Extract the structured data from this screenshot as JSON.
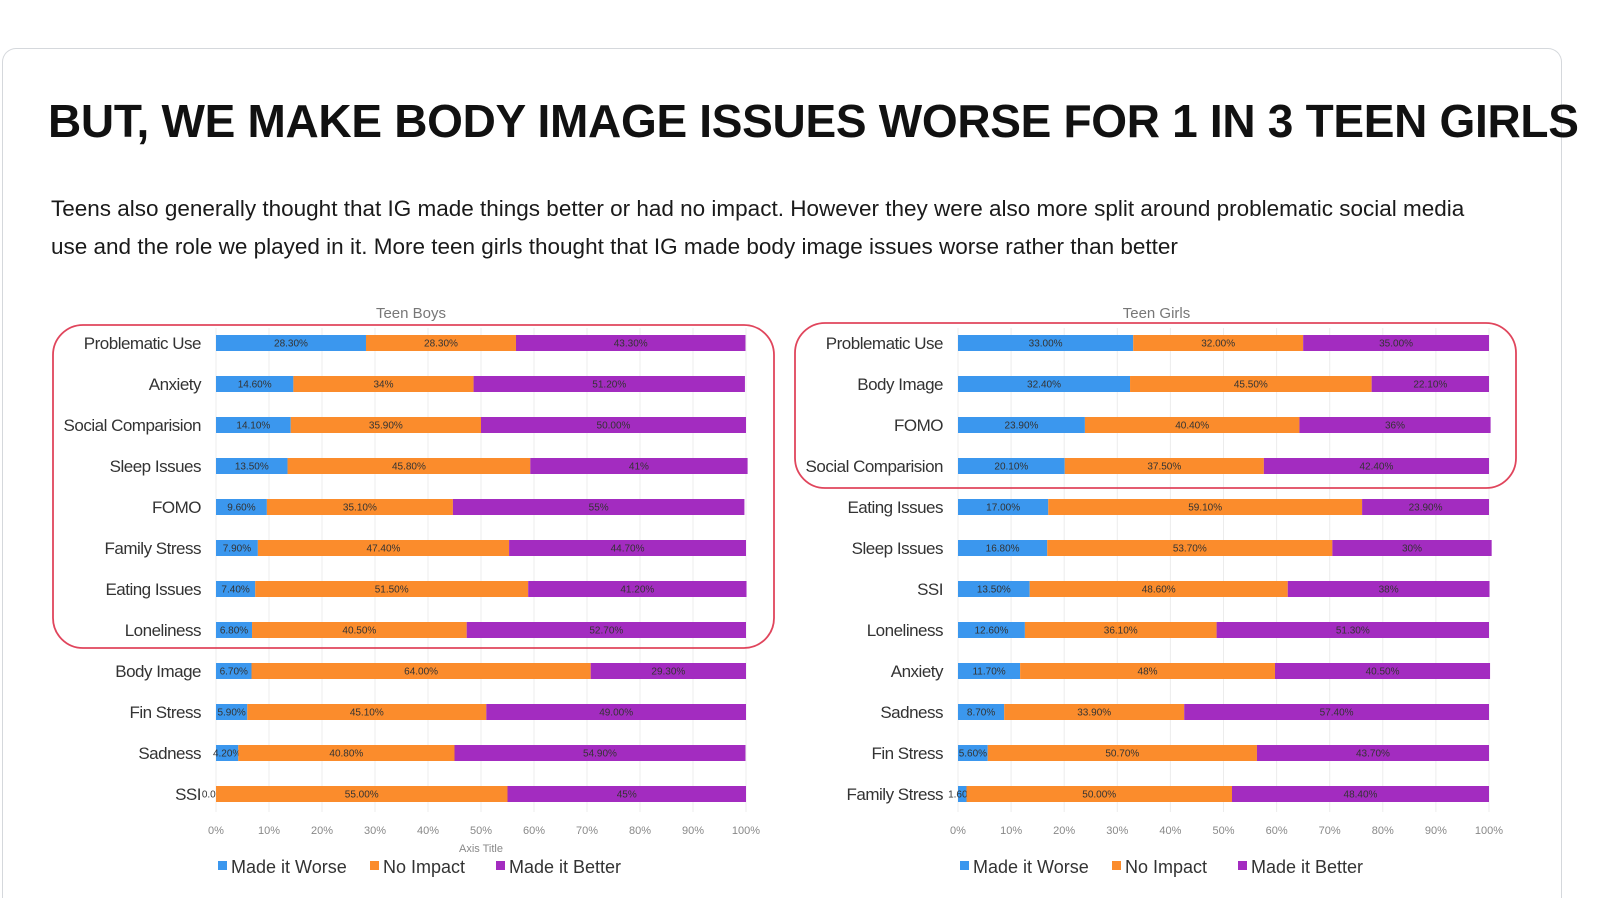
{
  "slide": {
    "title": "BUT, WE MAKE BODY IMAGE ISSUES WORSE FOR 1 IN 3 TEEN GIRLS",
    "subtitle": "Teens also generally thought that IG made things better or had no impact. However they were also more split around problematic social media use and the role we played in it. More teen girls thought that IG made body image issues worse rather than better"
  },
  "colors": {
    "made_worse": "#3b97ee",
    "no_impact": "#fb8c2c",
    "made_better": "#a32cc0",
    "highlight": "#e0455c"
  },
  "chart_data": [
    {
      "type": "bar",
      "orientation": "horizontal",
      "stacked": "percent",
      "title": "Teen Boys",
      "xlabel": "Axis Title",
      "xlim": [
        0,
        100
      ],
      "xticks": [
        "0%",
        "10%",
        "20%",
        "30%",
        "40%",
        "50%",
        "60%",
        "70%",
        "80%",
        "90%",
        "100%"
      ],
      "grid": true,
      "legend": "bottom",
      "highlighted_categories": [
        "Problematic Use",
        "Anxiety",
        "Social Comparision",
        "Sleep Issues",
        "FOMO",
        "Family Stress",
        "Eating Issues",
        "Loneliness"
      ],
      "categories": [
        "Problematic Use",
        "Anxiety",
        "Social Comparision",
        "Sleep Issues",
        "FOMO",
        "Family Stress",
        "Eating Issues",
        "Loneliness",
        "Body Image",
        "Fin Stress",
        "Sadness",
        "SSI"
      ],
      "series": [
        {
          "name": "Made it Worse",
          "values": [
            28.3,
            14.6,
            14.1,
            13.5,
            9.6,
            7.9,
            7.4,
            6.8,
            6.7,
            5.9,
            4.2,
            0.0
          ],
          "labels": [
            "28.30%",
            "14.60%",
            "14.10%",
            "13.50%",
            "9.60%",
            "7.90%",
            "7.40%",
            "6.80%",
            "6.70%",
            "5.90%",
            "4.20%",
            "0.00%"
          ]
        },
        {
          "name": "No Impact",
          "values": [
            28.3,
            34,
            35.9,
            45.8,
            35.1,
            47.4,
            51.5,
            40.5,
            64.0,
            45.1,
            40.8,
            55.0
          ],
          "labels": [
            "28.30%",
            "34%",
            "35.90%",
            "45.80%",
            "35.10%",
            "47.40%",
            "51.50%",
            "40.50%",
            "64.00%",
            "45.10%",
            "40.80%",
            "55.00%"
          ]
        },
        {
          "name": "Made it Better",
          "values": [
            43.3,
            51.2,
            50.0,
            41,
            55,
            44.7,
            41.2,
            52.7,
            29.3,
            49.0,
            54.9,
            45
          ],
          "labels": [
            "43.30%",
            "51.20%",
            "50.00%",
            "41%",
            "55%",
            "44.70%",
            "41.20%",
            "52.70%",
            "29.30%",
            "49.00%",
            "54.90%",
            "45%"
          ]
        }
      ]
    },
    {
      "type": "bar",
      "orientation": "horizontal",
      "stacked": "percent",
      "title": "Teen Girls",
      "xlabel": "",
      "xlim": [
        0,
        100
      ],
      "xticks": [
        "0%",
        "10%",
        "20%",
        "30%",
        "40%",
        "50%",
        "60%",
        "70%",
        "80%",
        "90%",
        "100%"
      ],
      "grid": true,
      "legend": "bottom",
      "highlighted_categories": [
        "Problematic Use",
        "Body Image",
        "FOMO",
        "Social Comparision"
      ],
      "categories": [
        "Problematic Use",
        "Body Image",
        "FOMO",
        "Social Comparision",
        "Eating Issues",
        "Sleep Issues",
        "SSI",
        "Loneliness",
        "Anxiety",
        "Sadness",
        "Fin Stress",
        "Family Stress"
      ],
      "series": [
        {
          "name": "Made it Worse",
          "values": [
            33.0,
            32.4,
            23.9,
            20.1,
            17.0,
            16.8,
            13.5,
            12.6,
            11.7,
            8.7,
            5.6,
            1.6
          ],
          "labels": [
            "33.00%",
            "32.40%",
            "23.90%",
            "20.10%",
            "17.00%",
            "16.80%",
            "13.50%",
            "12.60%",
            "11.70%",
            "8.70%",
            "5.60%",
            "1.60%"
          ]
        },
        {
          "name": "No Impact",
          "values": [
            32.0,
            45.5,
            40.4,
            37.5,
            59.1,
            53.7,
            48.6,
            36.1,
            48,
            33.9,
            50.7,
            50.0
          ],
          "labels": [
            "32.00%",
            "45.50%",
            "40.40%",
            "37.50%",
            "59.10%",
            "53.70%",
            "48.60%",
            "36.10%",
            "48%",
            "33.90%",
            "50.70%",
            "50.00%"
          ]
        },
        {
          "name": "Made it Better",
          "values": [
            35.0,
            22.1,
            36,
            42.4,
            23.9,
            30,
            38,
            51.3,
            40.5,
            57.4,
            43.7,
            48.4
          ],
          "labels": [
            "35.00%",
            "22.10%",
            "36%",
            "42.40%",
            "23.90%",
            "30%",
            "38%",
            "51.30%",
            "40.50%",
            "57.40%",
            "43.70%",
            "48.40%"
          ]
        }
      ]
    }
  ]
}
